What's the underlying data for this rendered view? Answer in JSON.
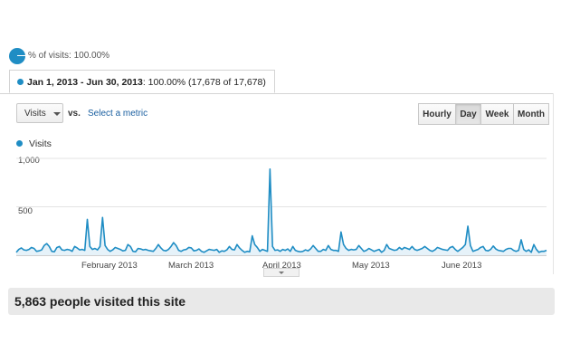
{
  "header": {
    "pct_label": "% of visits: 100.00%"
  },
  "segment": {
    "date_range": "Jan 1, 2013 - Jun 30, 2013",
    "summary": ": 100.00% (17,678 of 17,678)"
  },
  "controls": {
    "metric_select": "Visits",
    "vs_label": "vs.",
    "select_metric_link": "Select a metric",
    "time_buttons": [
      "Hourly",
      "Day",
      "Week",
      "Month"
    ],
    "active_time_button": "Day"
  },
  "legend": {
    "label": "Visits",
    "color": "#1f8dc4"
  },
  "chart_data": {
    "type": "area",
    "series": [
      {
        "name": "Visits",
        "values": [
          30,
          60,
          75,
          55,
          50,
          60,
          80,
          70,
          40,
          45,
          55,
          100,
          120,
          90,
          40,
          35,
          80,
          90,
          55,
          50,
          60,
          55,
          40,
          90,
          75,
          55,
          60,
          50,
          370,
          90,
          60,
          70,
          55,
          90,
          390,
          100,
          60,
          40,
          55,
          80,
          70,
          60,
          45,
          50,
          110,
          90,
          40,
          35,
          70,
          65,
          55,
          60,
          50,
          45,
          40,
          70,
          110,
          75,
          50,
          45,
          60,
          90,
          130,
          100,
          50,
          40,
          55,
          60,
          80,
          75,
          45,
          50,
          65,
          40,
          30,
          45,
          60,
          55,
          50,
          60,
          30,
          45,
          40,
          55,
          90,
          60,
          55,
          110,
          75,
          50,
          30,
          40,
          35,
          200,
          110,
          80,
          40,
          60,
          50,
          40,
          890,
          90,
          50,
          55,
          40,
          60,
          50,
          65,
          40,
          90,
          50,
          40,
          35,
          40,
          55,
          45,
          65,
          100,
          70,
          40,
          40,
          60,
          50,
          100,
          60,
          50,
          50,
          40,
          240,
          110,
          70,
          50,
          60,
          55,
          60,
          100,
          70,
          40,
          50,
          70,
          55,
          40,
          50,
          60,
          30,
          50,
          110,
          70,
          60,
          50,
          55,
          80,
          60,
          80,
          70,
          60,
          90,
          60,
          50,
          60,
          70,
          90,
          70,
          50,
          40,
          55,
          80,
          70,
          60,
          55,
          50,
          80,
          90,
          60,
          40,
          60,
          80,
          110,
          300,
          100,
          40,
          50,
          60,
          80,
          90,
          50,
          45,
          60,
          95,
          65,
          50,
          45,
          40,
          60,
          70,
          70,
          50,
          40,
          50,
          160,
          60,
          40,
          55,
          30,
          110,
          60,
          30,
          40,
          40,
          50
        ]
      }
    ],
    "x_labels": [
      "February 2013",
      "March 2013",
      "April 2013",
      "May 2013",
      "June 2013"
    ],
    "y_ticks": [
      "500",
      "1,000"
    ],
    "ylim": [
      0,
      1000
    ],
    "grid": true
  },
  "summary_box": {
    "text": "5,863 people visited this site"
  }
}
